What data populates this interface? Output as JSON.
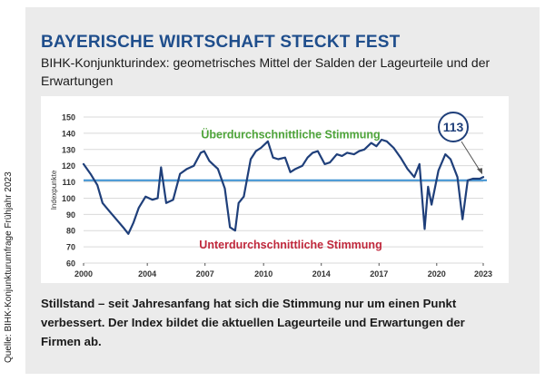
{
  "title": "BAYERISCHE WIRTSCHAFT STECKT FEST",
  "subtitle": "BIHK-Konjunkturindex: geometrisches Mittel der Salden der Lageurteile und der Erwartungen",
  "caption": "Stillstand – seit Jahresanfang hat sich die Stimmung nur um einen Punkt verbessert. Der Index bildet die aktuellen Lageurteile und Erwartungen der Firmen ab.",
  "source": "Quelle: BIHK-Konjunkturumfrage Frühjahr 2023",
  "colors": {
    "title": "#1f4e8c",
    "line": "#1f3f7a",
    "reference": "#3a8fd0",
    "above": "#4ea43a",
    "below": "#c0283c"
  },
  "chart_data": {
    "type": "line",
    "ylabel": "Indexpunkte",
    "ylim": [
      60,
      150
    ],
    "yticks": [
      60,
      70,
      80,
      90,
      100,
      110,
      120,
      130,
      140,
      150
    ],
    "xlim": [
      2000,
      2023.2
    ],
    "xtick_labels": [
      "2000",
      "2004",
      "2007",
      "2010",
      "2014",
      "2017",
      "2020",
      "2023"
    ],
    "xtick_values": [
      2000,
      2003.7,
      2007.05,
      2010.45,
      2013.8,
      2017.15,
      2020.5,
      2023.2
    ],
    "reference_value": 111,
    "annotation_above": "Überdurchschnittliche Stimmung",
    "annotation_below": "Unterdurchschnittliche Stimmung",
    "callout": "113",
    "grid": true,
    "series": [
      {
        "x": [
          2000,
          2000.4,
          2000.8,
          2001.1,
          2001.5,
          2001.9,
          2002.3,
          2002.6,
          2002.9,
          2003.2,
          2003.6,
          2004.0,
          2004.3,
          2004.5,
          2004.8,
          2005.2,
          2005.6,
          2006.0,
          2006.4,
          2006.8,
          2007.0,
          2007.3,
          2007.5,
          2007.8,
          2008.2,
          2008.5,
          2008.8,
          2009.0,
          2009.3,
          2009.7,
          2010.0,
          2010.3,
          2010.7,
          2011.0,
          2011.3,
          2011.7,
          2012.0,
          2012.3,
          2012.7,
          2013.0,
          2013.3,
          2013.6,
          2014.0,
          2014.3,
          2014.7,
          2015.0,
          2015.3,
          2015.7,
          2016.0,
          2016.3,
          2016.7,
          2017.0,
          2017.3,
          2017.6,
          2018.0,
          2018.4,
          2018.8,
          2019.2,
          2019.5,
          2019.8,
          2020.0,
          2020.2,
          2020.6,
          2021.0,
          2021.3,
          2021.7,
          2022.0,
          2022.3,
          2022.6,
          2023.0,
          2023.2
        ],
        "y": [
          121,
          115,
          108,
          97,
          92,
          87,
          82,
          78,
          85,
          94,
          101,
          99,
          100,
          119,
          97,
          99,
          115,
          118,
          120,
          128,
          129,
          123,
          121,
          118,
          106,
          82,
          80,
          97,
          101,
          124,
          129,
          131,
          135,
          125,
          124,
          125,
          116,
          118,
          120,
          125,
          128,
          129,
          121,
          122,
          127,
          126,
          128,
          127,
          129,
          130,
          134,
          132,
          136,
          135,
          131,
          125,
          118,
          113,
          121,
          81,
          107,
          96,
          117,
          127,
          124,
          113,
          87,
          111,
          112,
          112,
          113
        ]
      }
    ]
  }
}
